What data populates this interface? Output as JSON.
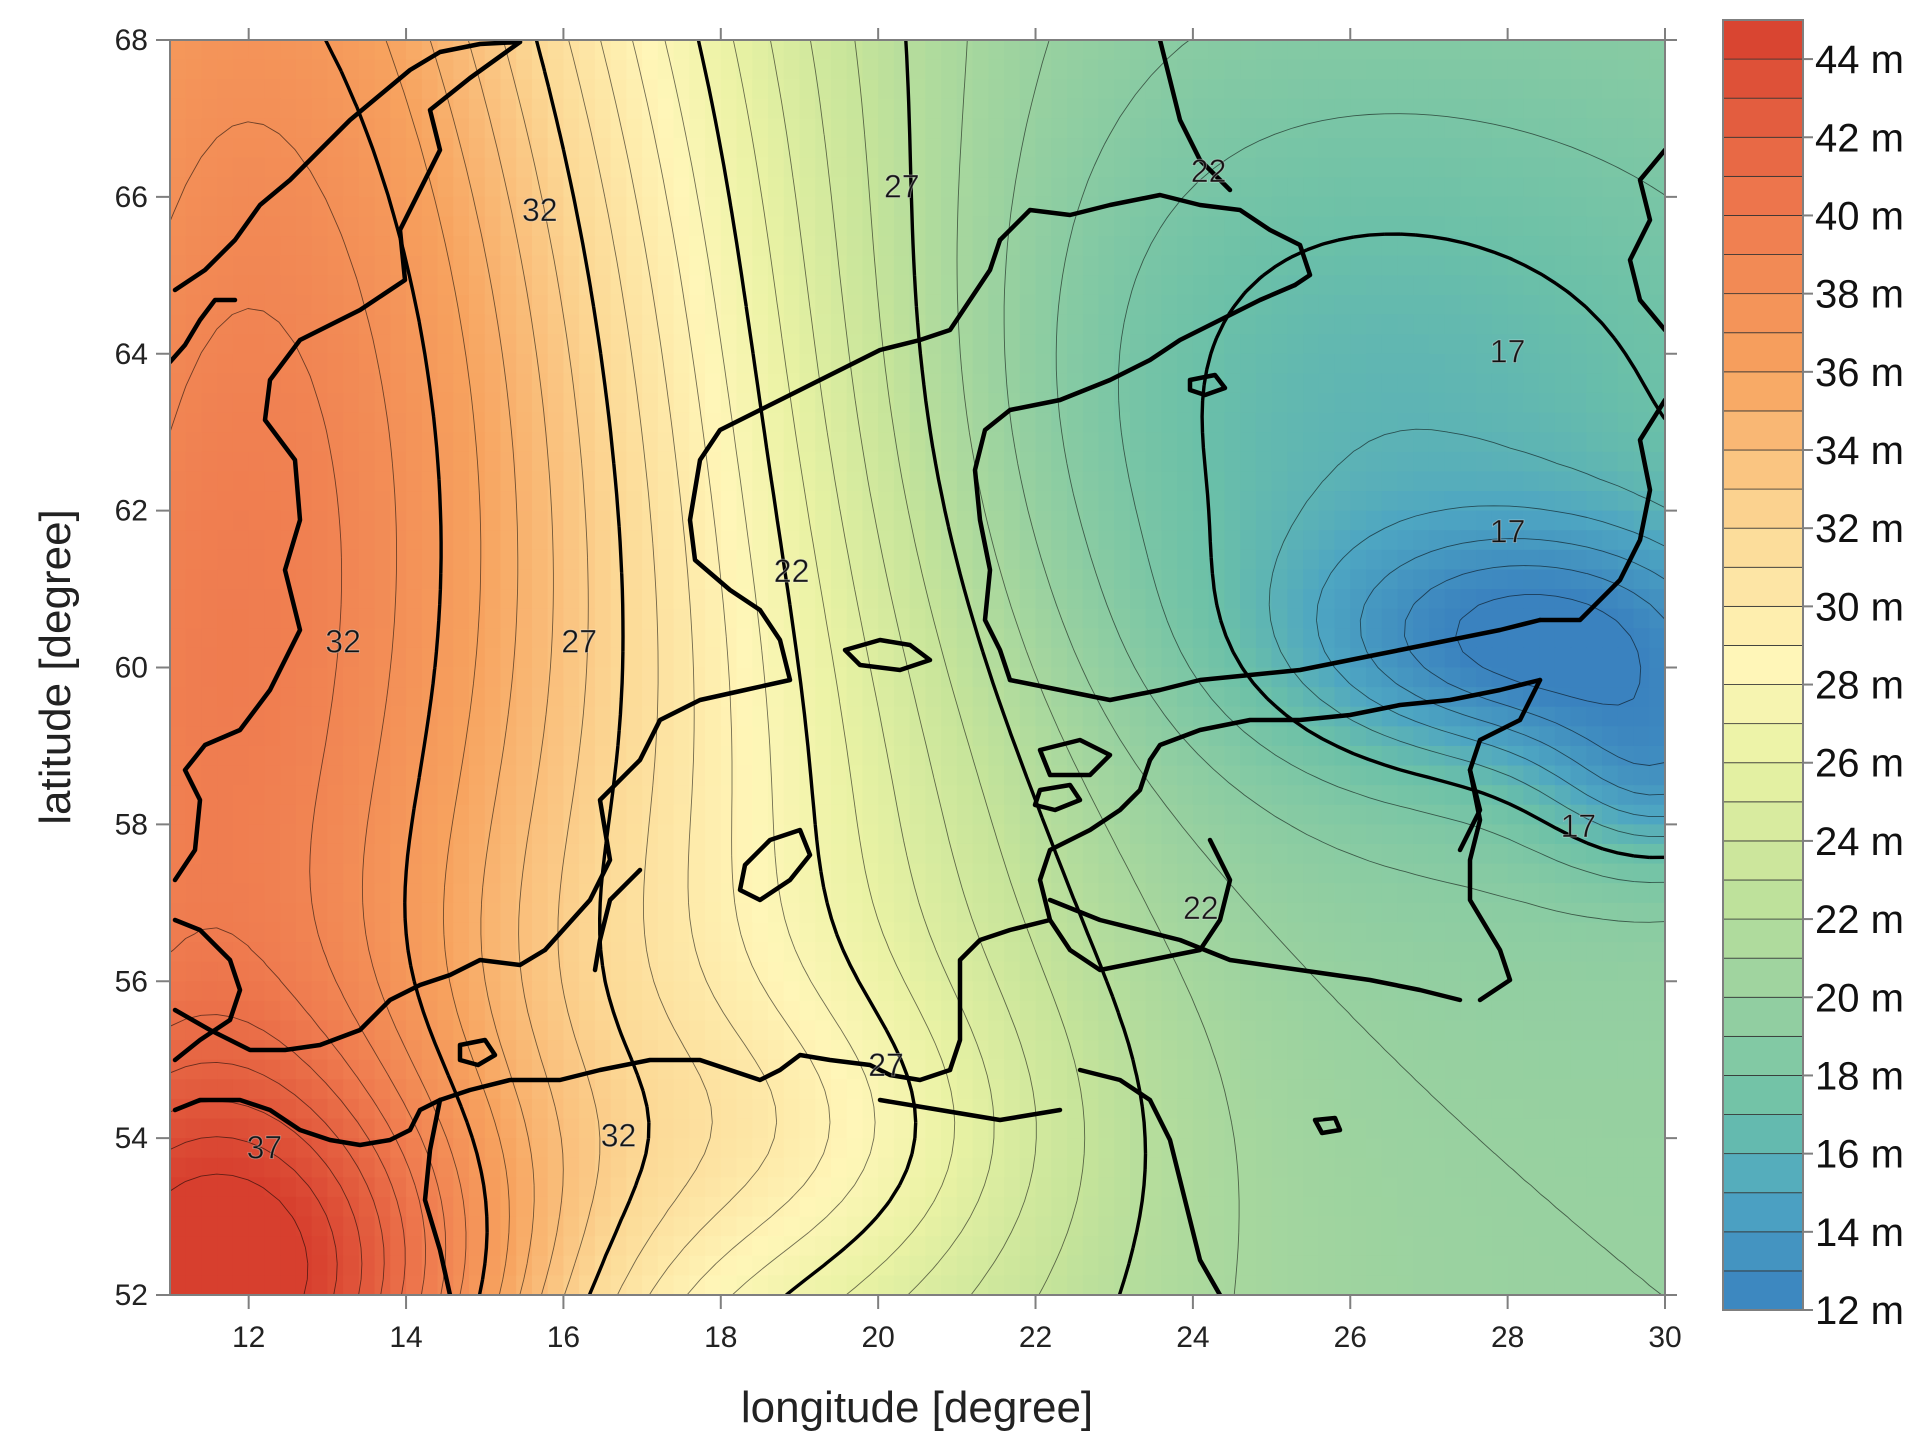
{
  "chart_data": {
    "type": "contour-map",
    "title": "",
    "xlabel": "longitude [degree]",
    "ylabel": "latitude [degree]",
    "xlim": [
      11,
      30
    ],
    "ylim": [
      52,
      68
    ],
    "x_ticks": [
      12,
      14,
      16,
      18,
      20,
      22,
      24,
      26,
      28,
      30
    ],
    "y_ticks": [
      52,
      54,
      56,
      58,
      60,
      62,
      64,
      66,
      68
    ],
    "grid": false,
    "colorbar": {
      "placement": "right",
      "unit": "m",
      "range": [
        12,
        45
      ],
      "step": 1,
      "tick_values": [
        44,
        42,
        40,
        38,
        36,
        34,
        32,
        30,
        28,
        26,
        24,
        22,
        20,
        18,
        16,
        14,
        12
      ],
      "tick_labels": [
        "44 m",
        "42 m",
        "40 m",
        "38 m",
        "36 m",
        "34 m",
        "32 m",
        "30 m",
        "28 m",
        "26 m",
        "24 m",
        "22 m",
        "20 m",
        "18 m",
        "16 m",
        "14 m",
        "12 m"
      ],
      "color_stops": [
        {
          "value": 12,
          "color": "#3a82bf"
        },
        {
          "value": 15,
          "color": "#4ea6c2"
        },
        {
          "value": 17,
          "color": "#6bc0a8"
        },
        {
          "value": 20,
          "color": "#98d1a0"
        },
        {
          "value": 23,
          "color": "#c6e49a"
        },
        {
          "value": 26,
          "color": "#e9f2a4"
        },
        {
          "value": 28.5,
          "color": "#fff6b8"
        },
        {
          "value": 32,
          "color": "#fcd996"
        },
        {
          "value": 36,
          "color": "#f7a35f"
        },
        {
          "value": 40,
          "color": "#ef7b4f"
        },
        {
          "value": 45,
          "color": "#d73f2e"
        }
      ]
    },
    "major_contour_levels": [
      17,
      22,
      27,
      32,
      37
    ],
    "contour_labels": [
      {
        "text": "37",
        "lon": 12.2,
        "lat": 53.85
      },
      {
        "text": "32",
        "lon": 13.2,
        "lat": 60.3
      },
      {
        "text": "32",
        "lon": 15.7,
        "lat": 65.8
      },
      {
        "text": "32",
        "lon": 16.7,
        "lat": 54.0
      },
      {
        "text": "27",
        "lon": 16.2,
        "lat": 60.3
      },
      {
        "text": "27",
        "lon": 20.3,
        "lat": 66.1
      },
      {
        "text": "27",
        "lon": 20.1,
        "lat": 54.9
      },
      {
        "text": "22",
        "lon": 24.2,
        "lat": 66.3
      },
      {
        "text": "22",
        "lon": 18.9,
        "lat": 61.2
      },
      {
        "text": "22",
        "lon": 24.1,
        "lat": 56.9
      },
      {
        "text": "17",
        "lon": 28.0,
        "lat": 64.0
      },
      {
        "text": "17",
        "lon": 28.0,
        "lat": 61.7
      },
      {
        "text": "17",
        "lon": 28.9,
        "lat": 57.95
      }
    ]
  }
}
